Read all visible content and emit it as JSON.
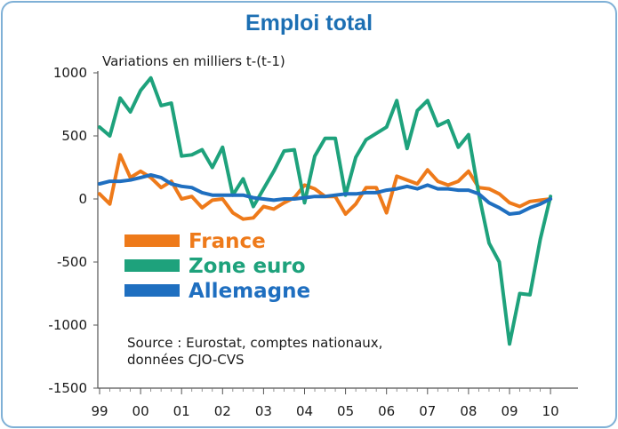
{
  "colors": {
    "title": "#1c6fb3",
    "france": "#ee7a1a",
    "zone_euro": "#1ea27c",
    "allemagne": "#1f6fc0",
    "frame": "#7fb0d6"
  },
  "chart_data": {
    "type": "line",
    "title": "Emploi total",
    "ylabel": "Variations en milliers t-(t-1)",
    "xlabel": "",
    "ylim": [
      -1500,
      1000
    ],
    "yticks": [
      "1000",
      "500",
      "0",
      "-500",
      "-1000",
      "-1500"
    ],
    "xtick_labels": [
      "99",
      "00",
      "01",
      "02",
      "03",
      "04",
      "05",
      "06",
      "07",
      "08",
      "09",
      "10"
    ],
    "x": [
      "99T1",
      "99T2",
      "99T3",
      "99T4",
      "00T1",
      "00T2",
      "00T3",
      "00T4",
      "01T1",
      "01T2",
      "01T3",
      "01T4",
      "02T1",
      "02T2",
      "02T3",
      "02T4",
      "03T1",
      "03T2",
      "03T3",
      "03T4",
      "04T1",
      "04T2",
      "04T3",
      "04T4",
      "05T1",
      "05T2",
      "05T3",
      "05T4",
      "06T1",
      "06T2",
      "06T3",
      "06T4",
      "07T1",
      "07T2",
      "07T3",
      "07T4",
      "08T1",
      "08T2",
      "08T3",
      "08T4",
      "09T1",
      "09T2",
      "09T3",
      "09T4",
      "10T1"
    ],
    "series": [
      {
        "name": "France",
        "color": "#ee7a1a",
        "values": [
          40,
          -40,
          350,
          170,
          220,
          170,
          90,
          140,
          0,
          20,
          -70,
          -10,
          0,
          -110,
          -160,
          -150,
          -60,
          -80,
          -30,
          10,
          110,
          80,
          20,
          20,
          -120,
          -40,
          90,
          90,
          -110,
          180,
          150,
          120,
          230,
          140,
          110,
          140,
          220,
          90,
          80,
          40,
          -30,
          -60,
          -20,
          -10,
          0
        ]
      },
      {
        "name": "Zone euro",
        "color": "#1ea27c",
        "values": [
          570,
          500,
          800,
          690,
          860,
          960,
          740,
          760,
          340,
          350,
          390,
          250,
          410,
          30,
          160,
          -60,
          80,
          220,
          380,
          390,
          -30,
          340,
          480,
          480,
          30,
          330,
          470,
          520,
          570,
          780,
          400,
          700,
          780,
          580,
          620,
          410,
          510,
          40,
          -350,
          -500,
          -1150,
          -750,
          -760,
          -320,
          20
        ]
      },
      {
        "name": "Allemagne",
        "color": "#1f6fc0",
        "values": [
          120,
          140,
          140,
          150,
          170,
          190,
          170,
          120,
          100,
          90,
          50,
          30,
          30,
          30,
          30,
          10,
          0,
          -10,
          0,
          0,
          10,
          20,
          20,
          30,
          40,
          40,
          50,
          50,
          70,
          80,
          100,
          80,
          110,
          80,
          80,
          70,
          70,
          40,
          -30,
          -70,
          -120,
          -110,
          -70,
          -40,
          0
        ]
      }
    ],
    "legend_position": "center-left",
    "annotation": "Source : Eurostat, comptes nationaux, données CJO-CVS"
  },
  "annotation_lines": [
    "Source : Eurostat, comptes nationaux,",
    "données CJO-CVS"
  ]
}
